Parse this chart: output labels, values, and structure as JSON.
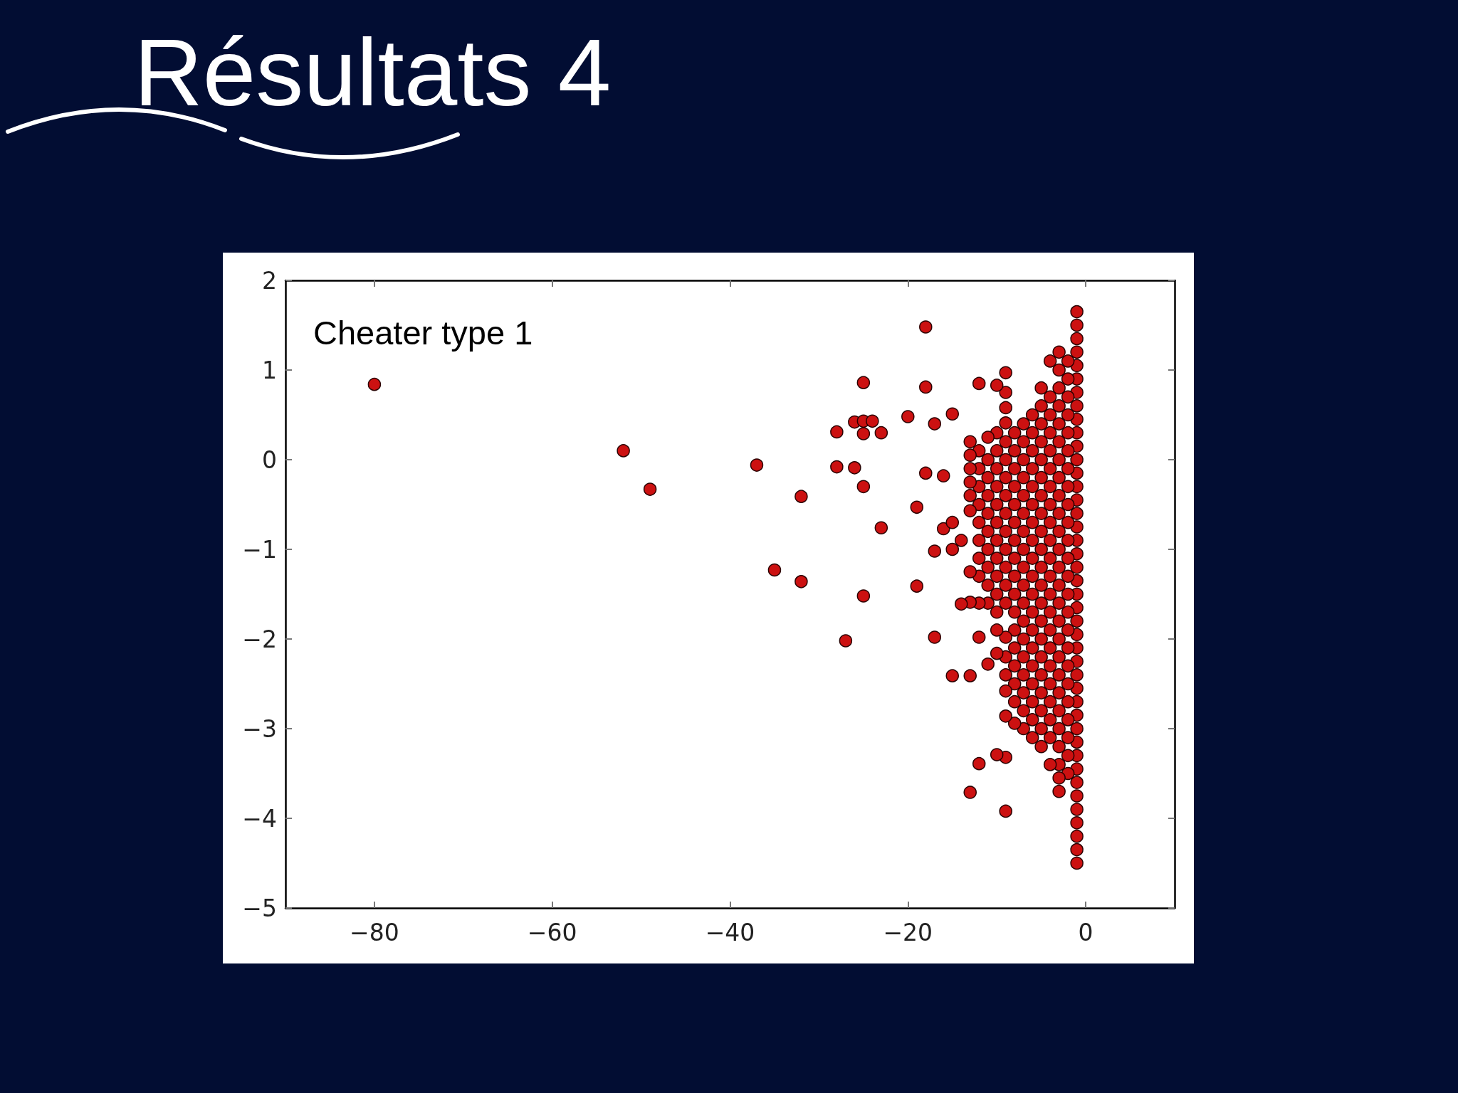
{
  "chart_data": {
    "type": "scatter",
    "title": "Résultats 4",
    "annotations": [
      "Cheater type 1"
    ],
    "color": "#cc1111",
    "marker": "circle",
    "grid": false,
    "xlim": [
      -90,
      10
    ],
    "xticks": [
      {
        "value": -80,
        "label": "−80"
      },
      {
        "value": -60,
        "label": "−60"
      },
      {
        "value": -40,
        "label": "−40"
      },
      {
        "value": -20,
        "label": "−20"
      },
      0
    ],
    "ylim": [
      -5,
      2
    ],
    "yticks": [
      {
        "value": -5,
        "label": "−5"
      },
      {
        "value": -4,
        "label": "−4"
      },
      {
        "value": -3,
        "label": "−3"
      },
      {
        "value": -2,
        "label": "−2"
      },
      {
        "value": -1,
        "label": "−1"
      },
      0,
      1,
      2
    ],
    "x": [
      -1,
      -1,
      -1,
      -1,
      -1,
      -1,
      -1,
      -1,
      -1,
      -1,
      -1,
      -1,
      -1,
      -1,
      -1,
      -1,
      -1,
      -1,
      -1,
      -1,
      -1,
      -1,
      -1,
      -1,
      -1,
      -1,
      -1,
      -1,
      -1,
      -1,
      -1,
      -1,
      -1,
      -1,
      -1,
      -1,
      -1,
      -1,
      -1,
      -1,
      -1,
      -1,
      -2,
      -2,
      -2,
      -2,
      -2,
      -2,
      -2,
      -2,
      -2,
      -2,
      -2,
      -2,
      -2,
      -2,
      -2,
      -2,
      -2,
      -2,
      -2,
      -2,
      -2,
      -2,
      -2,
      -2,
      -3,
      -3,
      -3,
      -3,
      -3,
      -3,
      -3,
      -3,
      -3,
      -3,
      -3,
      -3,
      -3,
      -3,
      -3,
      -3,
      -3,
      -3,
      -3,
      -3,
      -3,
      -3,
      -3,
      -3,
      -3,
      -3,
      -4,
      -4,
      -4,
      -4,
      -4,
      -4,
      -4,
      -4,
      -4,
      -4,
      -4,
      -4,
      -4,
      -4,
      -4,
      -4,
      -4,
      -4,
      -4,
      -4,
      -4,
      -4,
      -5,
      -5,
      -5,
      -5,
      -5,
      -5,
      -5,
      -5,
      -5,
      -5,
      -5,
      -5,
      -5,
      -5,
      -5,
      -5,
      -5,
      -5,
      -5,
      -5,
      -5,
      -6,
      -6,
      -6,
      -6,
      -6,
      -6,
      -6,
      -6,
      -6,
      -6,
      -6,
      -6,
      -6,
      -6,
      -6,
      -6,
      -6,
      -6,
      -6,
      -7,
      -7,
      -7,
      -7,
      -7,
      -7,
      -7,
      -7,
      -7,
      -7,
      -7,
      -7,
      -7,
      -7,
      -7,
      -7,
      -7,
      -7,
      -8,
      -8,
      -8,
      -8,
      -8,
      -8,
      -8,
      -8,
      -8,
      -8,
      -8,
      -8,
      -8,
      -8,
      -8,
      -8,
      -8,
      -9,
      -9,
      -9,
      -9,
      -9,
      -9,
      -9,
      -9,
      -9,
      -9,
      -9,
      -9,
      -9,
      -9,
      -9,
      -9,
      -9,
      -9,
      -9,
      -9,
      -9,
      -10,
      -10,
      -10,
      -10,
      -10,
      -10,
      -10,
      -10,
      -10,
      -10,
      -10,
      -10,
      -10,
      -10,
      -10,
      -11,
      -11,
      -11,
      -11,
      -11,
      -11,
      -11,
      -11,
      -11,
      -11,
      -11,
      -12,
      -12,
      -12,
      -12,
      -12,
      -12,
      -12,
      -12,
      -12,
      -12,
      -12,
      -12,
      -13,
      -13,
      -13,
      -13,
      -13,
      -13,
      -13,
      -13,
      -13,
      -13,
      -80,
      -52,
      -49,
      -37,
      -35,
      -32,
      -32,
      -28,
      -28,
      -27,
      -26,
      -26,
      -25,
      -25,
      -25,
      -25,
      -25,
      -24,
      -23,
      -23,
      -20,
      -19,
      -19,
      -18,
      -18,
      -18,
      -17,
      -17,
      -17,
      -16,
      -16,
      -15,
      -15,
      -15,
      -15,
      -14,
      -14
    ],
    "values": [
      1.65,
      1.5,
      1.35,
      1.2,
      1.05,
      0.9,
      0.75,
      0.6,
      0.45,
      0.3,
      0.15,
      0,
      -0.15,
      -0.3,
      -0.45,
      -0.6,
      -0.75,
      -0.9,
      -1.05,
      -1.2,
      -1.35,
      -1.5,
      -1.65,
      -1.8,
      -1.95,
      -2.1,
      -2.25,
      -2.4,
      -2.55,
      -2.7,
      -2.85,
      -3,
      -3.15,
      -3.3,
      -3.45,
      -3.6,
      -3.75,
      -3.9,
      -4.05,
      -4.2,
      -4.35,
      -4.5,
      1.1,
      0.9,
      0.7,
      0.5,
      0.3,
      0.1,
      -0.1,
      -0.3,
      -0.5,
      -0.7,
      -0.9,
      -1.1,
      -1.3,
      -1.5,
      -1.7,
      -1.9,
      -2.1,
      -2.3,
      -2.5,
      -2.7,
      -2.9,
      -3.1,
      -3.3,
      -3.5,
      1.2,
      1,
      0.8,
      0.6,
      0.4,
      0.2,
      0,
      -0.2,
      -0.4,
      -0.6,
      -0.8,
      -1,
      -1.2,
      -1.4,
      -1.6,
      -1.8,
      -2,
      -2.2,
      -2.4,
      -2.6,
      -2.8,
      -3,
      -3.2,
      -3.4,
      -3.55,
      -3.7,
      1.1,
      0.7,
      0.5,
      0.3,
      0.1,
      -0.1,
      -0.3,
      -0.5,
      -0.7,
      -0.9,
      -1.1,
      -1.3,
      -1.5,
      -1.7,
      -1.9,
      -2.1,
      -2.3,
      -2.5,
      -2.7,
      -2.9,
      -3.1,
      -3.4,
      0.8,
      0.6,
      0.4,
      0.2,
      0,
      -0.2,
      -0.4,
      -0.6,
      -0.8,
      -1,
      -1.2,
      -1.4,
      -1.6,
      -1.8,
      -2,
      -2.2,
      -2.4,
      -2.6,
      -2.8,
      -3,
      -3.2,
      0.5,
      0.3,
      0.1,
      -0.1,
      -0.3,
      -0.5,
      -0.7,
      -0.9,
      -1.1,
      -1.3,
      -1.5,
      -1.7,
      -1.9,
      -2.1,
      -2.3,
      -2.5,
      -2.7,
      -2.9,
      -3.1,
      0.4,
      0.2,
      0,
      -0.2,
      -0.4,
      -0.6,
      -0.8,
      -1,
      -1.2,
      -1.4,
      -1.6,
      -1.8,
      -2,
      -2.2,
      -2.4,
      -2.6,
      -2.8,
      -3,
      0.3,
      0.1,
      -0.1,
      -0.3,
      -0.5,
      -0.7,
      -0.9,
      -1.1,
      -1.3,
      -1.5,
      -1.7,
      -1.9,
      -2.1,
      -2.3,
      -2.5,
      -2.7,
      -2.94,
      0.97,
      0.75,
      0.58,
      0.41,
      0.2,
      0,
      -0.2,
      -0.4,
      -0.6,
      -0.8,
      -1,
      -1.2,
      -1.4,
      -1.6,
      -1.98,
      -2.2,
      -2.4,
      -2.58,
      -2.86,
      -3.32,
      -3.92,
      0.83,
      0.3,
      0.1,
      -0.1,
      -0.3,
      -0.5,
      -0.7,
      -0.9,
      -1.1,
      -1.3,
      -1.5,
      -1.7,
      -1.9,
      -2.16,
      -3.29,
      0.25,
      0,
      -0.2,
      -0.4,
      -0.6,
      -0.8,
      -1,
      -1.2,
      -1.4,
      -1.6,
      -2.28,
      0.85,
      0.1,
      -0.1,
      -0.3,
      -0.5,
      -0.7,
      -0.9,
      -1.1,
      -1.3,
      -1.6,
      -1.98,
      -3.39,
      0.2,
      0.05,
      -0.1,
      -0.25,
      -0.4,
      -0.57,
      -1.25,
      -1.59,
      -2.41,
      -3.71,
      0.84,
      0.1,
      -0.33,
      -0.06,
      -1.23,
      -0.41,
      -1.36,
      0.31,
      -0.08,
      -2.02,
      0.42,
      -0.09,
      0.86,
      0.43,
      0.29,
      -0.3,
      -1.52,
      0.43,
      0.3,
      -0.76,
      0.48,
      -0.53,
      -1.41,
      1.48,
      0.81,
      -0.15,
      0.4,
      -1.02,
      -1.98,
      -0.18,
      -0.77,
      0.51,
      -0.7,
      -1,
      -2.41,
      -0.9,
      -1.61
    ]
  }
}
